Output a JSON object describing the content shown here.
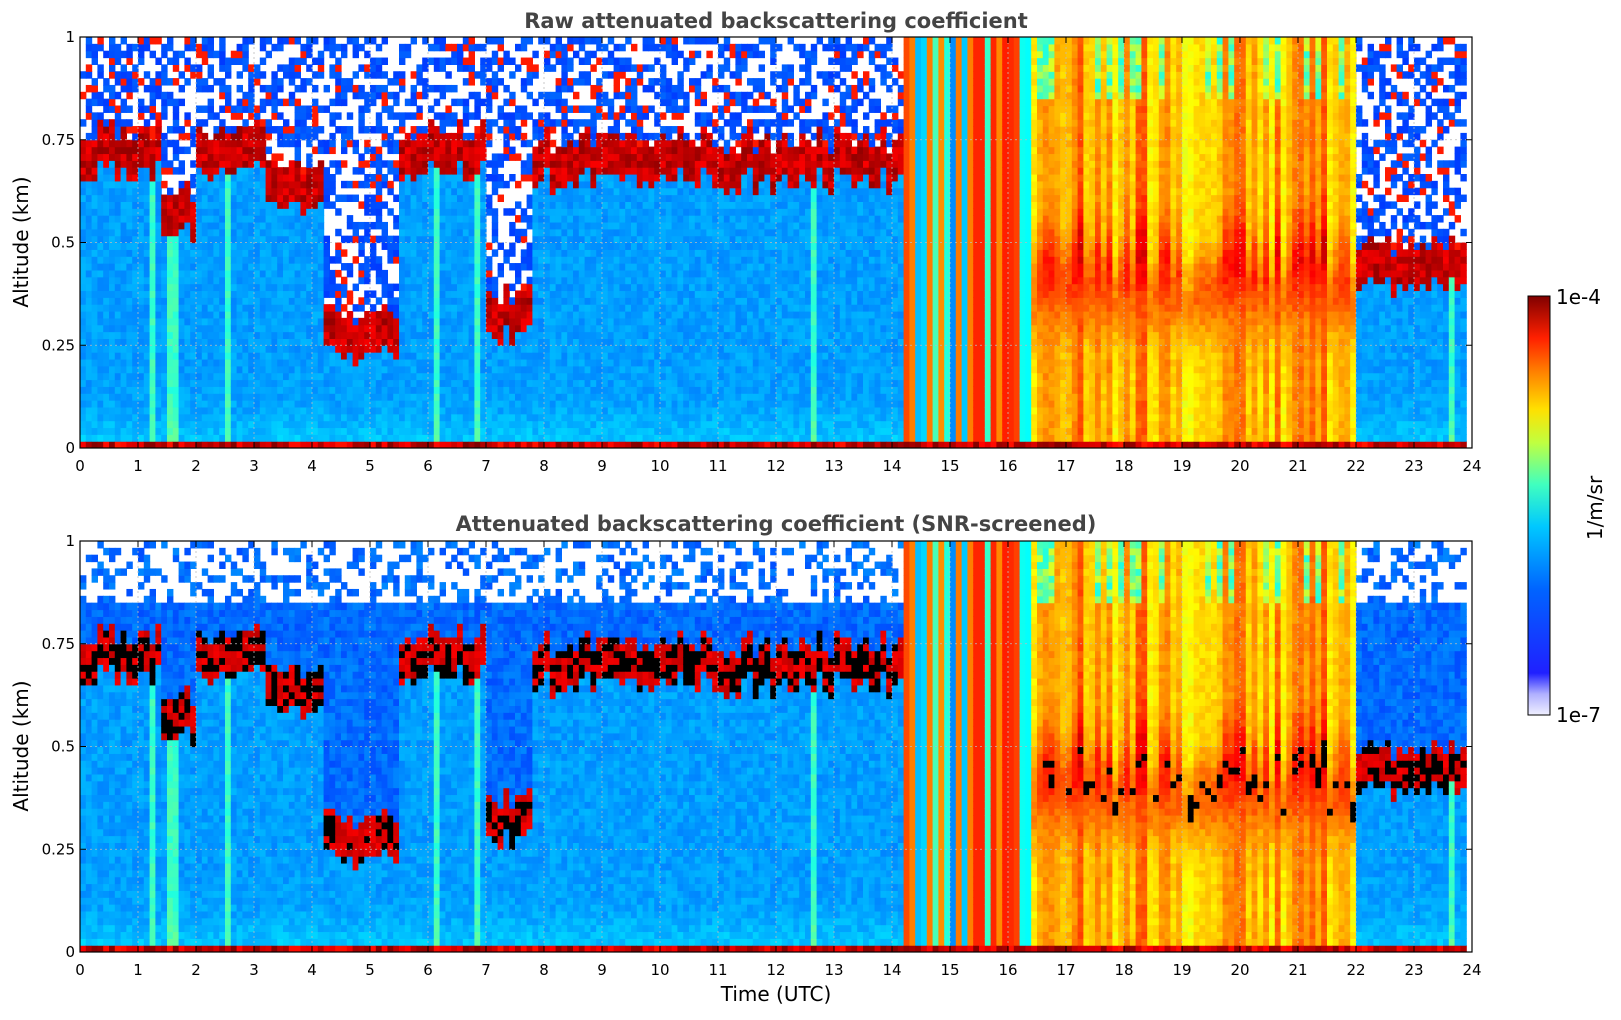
{
  "chart_data": [
    {
      "type": "heatmap",
      "title": "Raw attenuated backscattering coefficient",
      "xlabel": "",
      "ylabel": "Altitude (km)",
      "xlim": [
        0,
        24
      ],
      "ylim": [
        0,
        1
      ],
      "xticks": [
        "0",
        "1",
        "2",
        "3",
        "4",
        "5",
        "6",
        "7",
        "8",
        "9",
        "10",
        "11",
        "12",
        "13",
        "14",
        "15",
        "16",
        "17",
        "18",
        "19",
        "20",
        "21",
        "22",
        "23",
        "24"
      ],
      "yticks": [
        "0",
        "0.25",
        "0.5",
        "0.75",
        "1"
      ],
      "grid": true,
      "screened": false,
      "segments": [
        {
          "x": [
            0.0,
            1.4
          ],
          "layer_alt": 0.72,
          "regime": "clear"
        },
        {
          "x": [
            1.4,
            2.0
          ],
          "layer_alt": 0.58,
          "regime": "clear"
        },
        {
          "x": [
            2.0,
            3.2
          ],
          "layer_alt": 0.72,
          "regime": "clear"
        },
        {
          "x": [
            3.2,
            4.2
          ],
          "layer_alt": 0.65,
          "regime": "clear"
        },
        {
          "x": [
            4.2,
            5.5
          ],
          "layer_alt": 0.28,
          "regime": "clear"
        },
        {
          "x": [
            5.5,
            7.0
          ],
          "layer_alt": 0.72,
          "regime": "clear"
        },
        {
          "x": [
            7.0,
            7.8
          ],
          "layer_alt": 0.32,
          "regime": "clear"
        },
        {
          "x": [
            7.8,
            14.2
          ],
          "layer_alt": 0.7,
          "regime": "clear"
        },
        {
          "x": [
            14.2,
            16.4
          ],
          "layer_alt": null,
          "regime": "columns"
        },
        {
          "x": [
            16.4,
            22.0
          ],
          "layer_alt": 0.42,
          "regime": "dense"
        },
        {
          "x": [
            22.0,
            23.9
          ],
          "layer_alt": 0.45,
          "regime": "clear"
        }
      ]
    },
    {
      "type": "heatmap",
      "title": "Attenuated backscattering coefficient (SNR-screened)",
      "xlabel": "Time (UTC)",
      "ylabel": "Altitude (km)",
      "xlim": [
        0,
        24
      ],
      "ylim": [
        0,
        1
      ],
      "xticks": [
        "0",
        "1",
        "2",
        "3",
        "4",
        "5",
        "6",
        "7",
        "8",
        "9",
        "10",
        "11",
        "12",
        "13",
        "14",
        "15",
        "16",
        "17",
        "18",
        "19",
        "20",
        "21",
        "22",
        "23",
        "24"
      ],
      "yticks": [
        "0",
        "0.25",
        "0.5",
        "0.75",
        "1"
      ],
      "grid": true,
      "screened": true,
      "segments": [
        {
          "x": [
            0.0,
            1.4
          ],
          "layer_alt": 0.72,
          "regime": "clear"
        },
        {
          "x": [
            1.4,
            2.0
          ],
          "layer_alt": 0.58,
          "regime": "clear"
        },
        {
          "x": [
            2.0,
            3.2
          ],
          "layer_alt": 0.72,
          "regime": "clear"
        },
        {
          "x": [
            3.2,
            4.2
          ],
          "layer_alt": 0.65,
          "regime": "clear"
        },
        {
          "x": [
            4.2,
            5.5
          ],
          "layer_alt": 0.28,
          "regime": "clear"
        },
        {
          "x": [
            5.5,
            7.0
          ],
          "layer_alt": 0.72,
          "regime": "clear"
        },
        {
          "x": [
            7.0,
            7.8
          ],
          "layer_alt": 0.32,
          "regime": "clear"
        },
        {
          "x": [
            7.8,
            14.2
          ],
          "layer_alt": 0.7,
          "regime": "clear"
        },
        {
          "x": [
            14.2,
            16.4
          ],
          "layer_alt": null,
          "regime": "columns"
        },
        {
          "x": [
            16.4,
            22.0
          ],
          "layer_alt": 0.42,
          "regime": "dense"
        },
        {
          "x": [
            22.0,
            23.9
          ],
          "layer_alt": 0.45,
          "regime": "clear"
        }
      ]
    }
  ],
  "colorbar": {
    "label": "1/m/sr",
    "max_label": "1e-4",
    "min_label": "1e-7",
    "range": [
      1e-07,
      0.0001
    ],
    "scale": "log",
    "colormap": "jet"
  },
  "colors": {
    "background": "#ffffff",
    "title_color": "#444444",
    "grid": "#bbbbbb"
  }
}
